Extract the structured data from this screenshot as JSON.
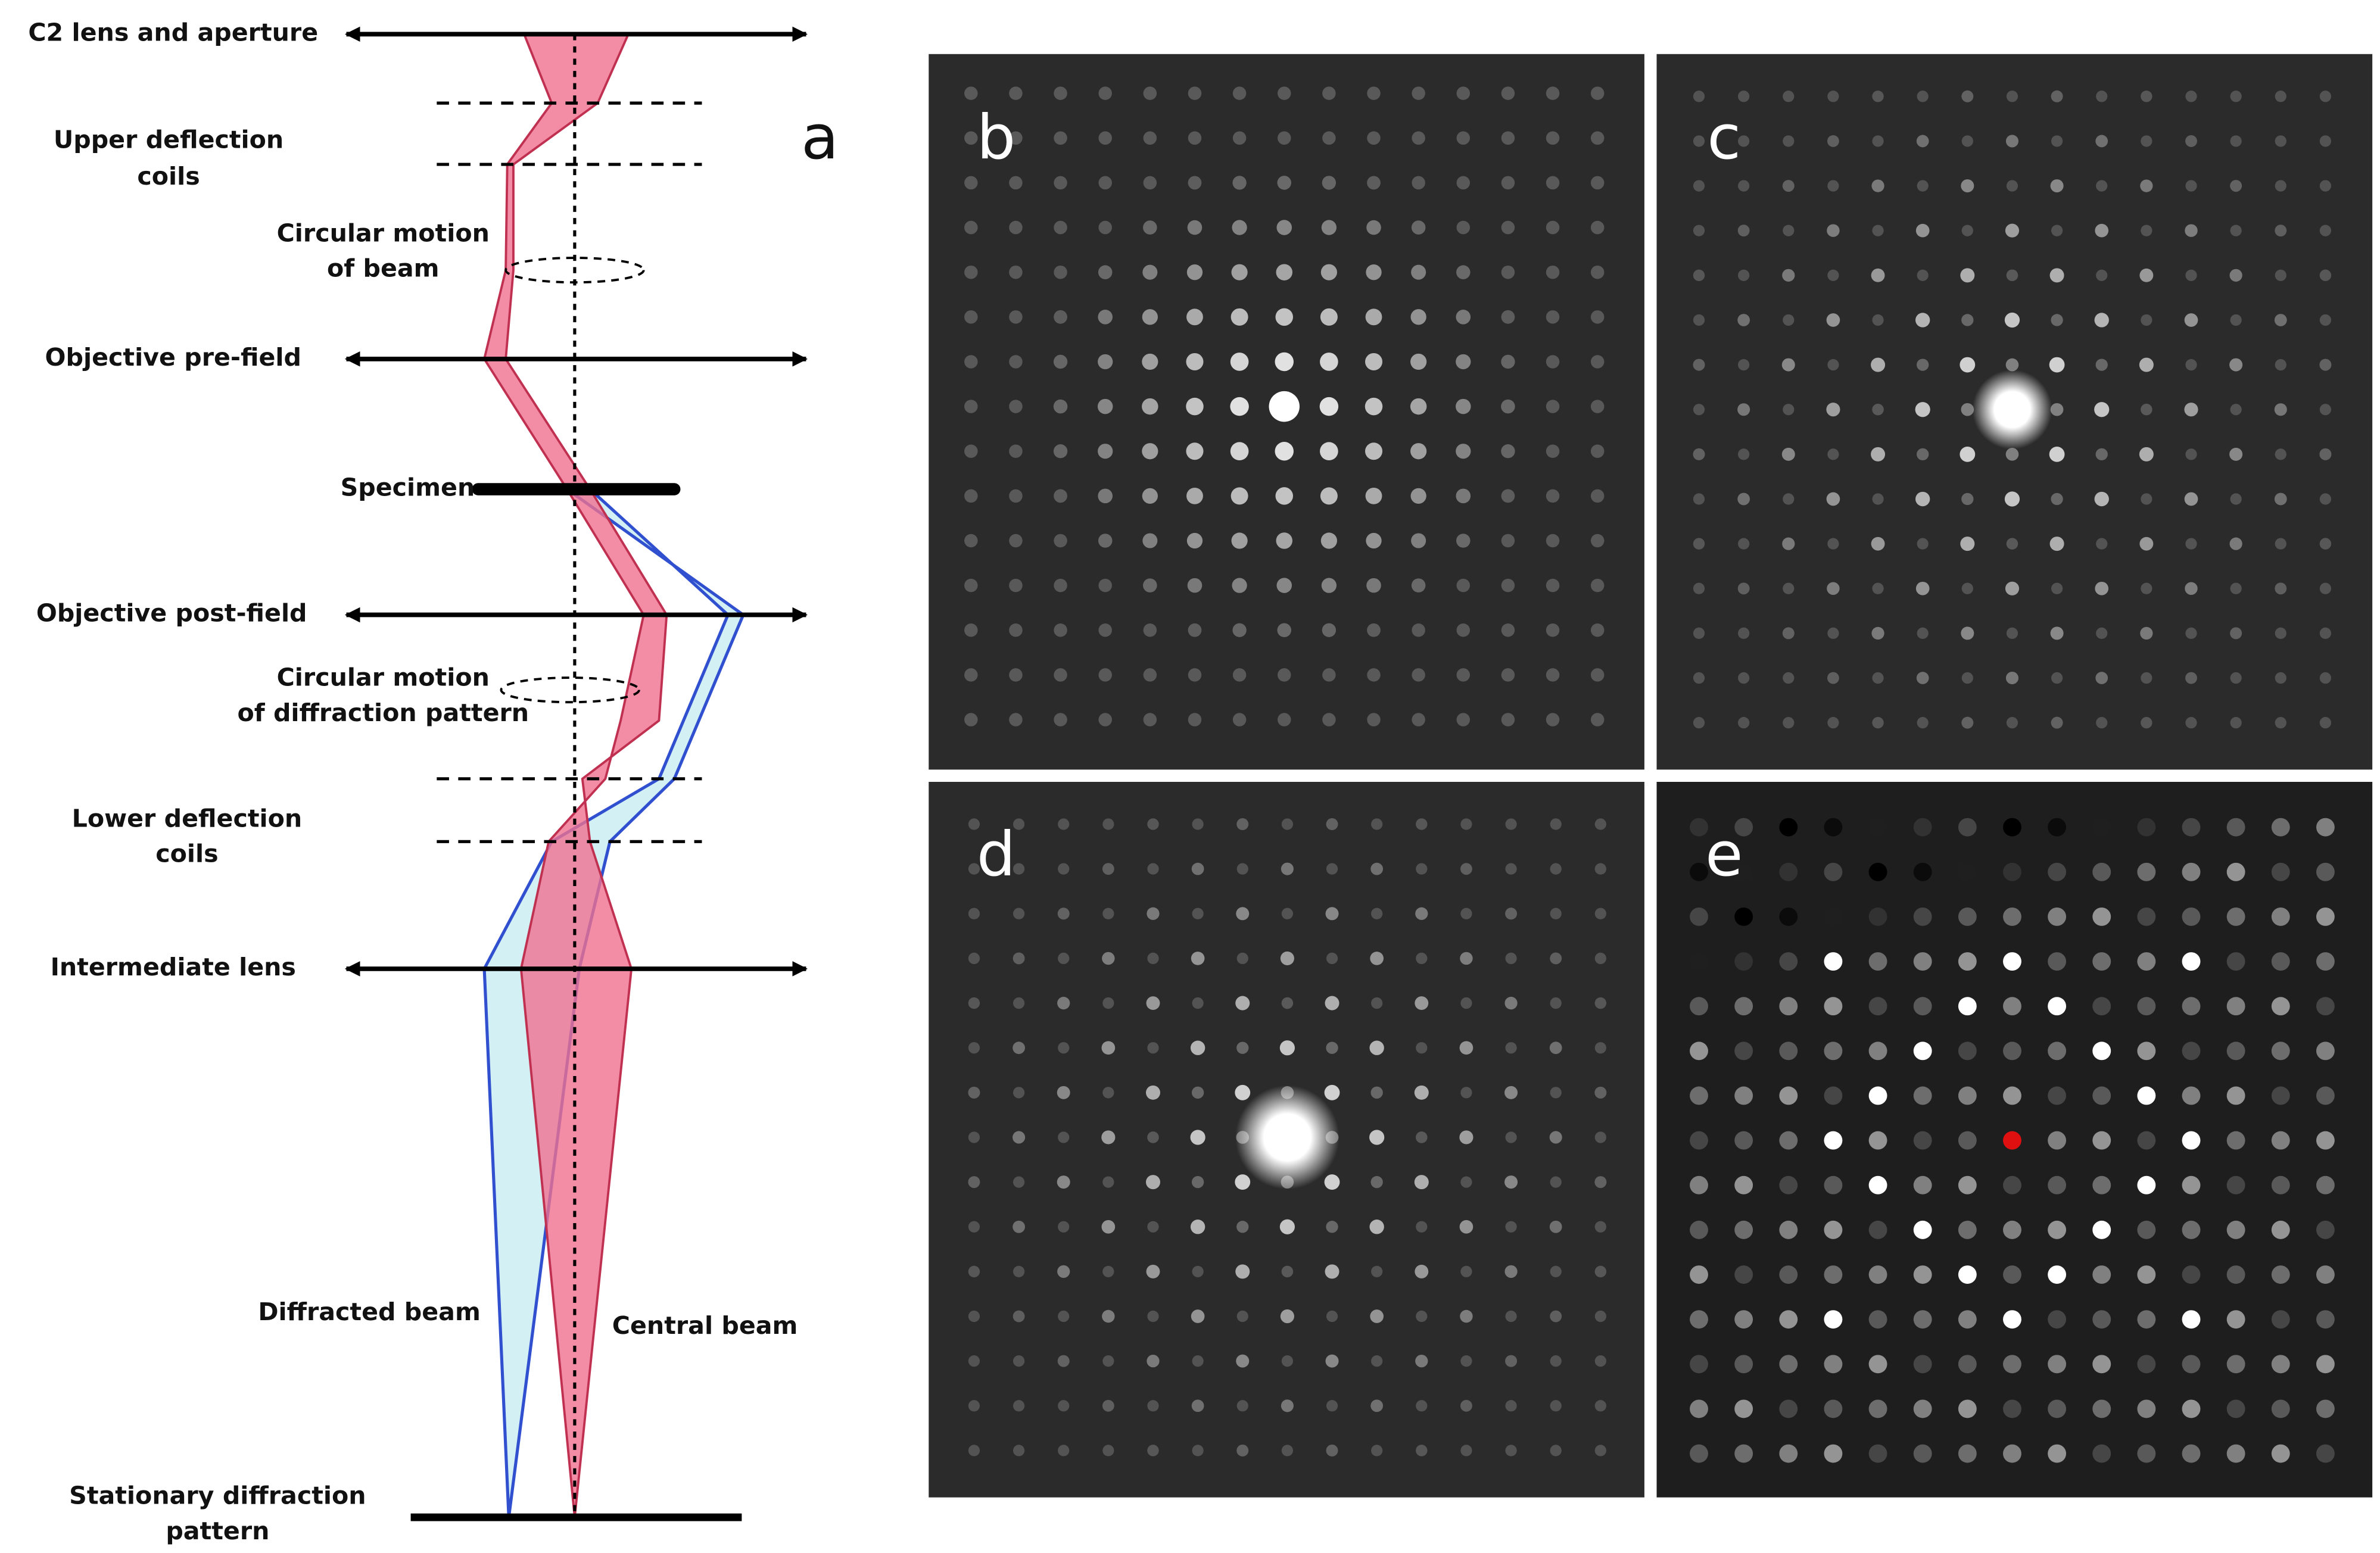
{
  "labels": [
    {
      "lines": [
        "C2 lens and aperture"
      ]
    },
    {
      "lines": [
        "Upper deflection",
        "coils"
      ]
    },
    {
      "lines": [
        "Circular motion",
        "of beam"
      ]
    },
    {
      "lines": [
        "Objective pre-field"
      ]
    },
    {
      "lines": [
        "Specimen"
      ]
    },
    {
      "lines": [
        "Objective post-field"
      ]
    },
    {
      "lines": [
        "Circular motion",
        "of diffraction pattern"
      ]
    },
    {
      "lines": [
        "Lower deflection",
        "coils"
      ]
    },
    {
      "lines": [
        "Intermediate lens"
      ]
    },
    {
      "lines": [
        "Diffracted beam"
      ]
    },
    {
      "lines": [
        "Central beam"
      ]
    },
    {
      "lines": [
        "Stationary diffraction",
        "pattern"
      ]
    }
  ],
  "panels": [
    "a",
    "b",
    "c",
    "d",
    "e"
  ]
}
